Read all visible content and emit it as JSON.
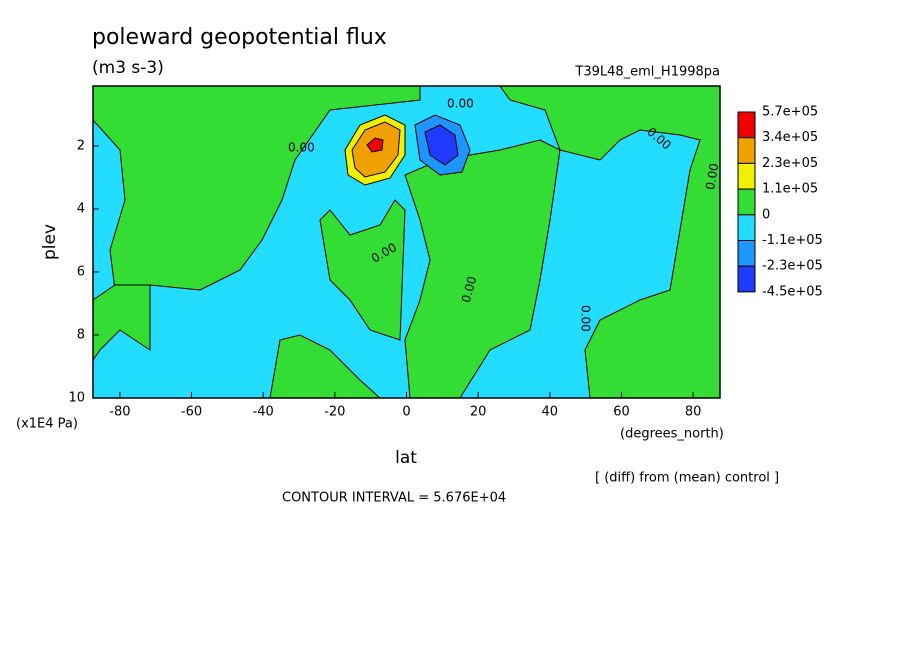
{
  "chart_data": {
    "type": "contour",
    "title": "poleward geopotential flux",
    "subtitle": "(m3 s-3)",
    "run_label": "T39L48_eml_H1998pa",
    "xlabel": "lat",
    "x_units": "(degrees_north)",
    "ylabel": "plev",
    "y_units": "(x1E4 Pa)",
    "note": "[ (diff) from (mean) control ]",
    "contour_interval": "CONTOUR INTERVAL = 5.676E+04",
    "contour_label": "0.00",
    "xlim": [
      -87.5,
      87.5
    ],
    "xticks": [
      -80,
      -60,
      -40,
      -20,
      0,
      20,
      40,
      60,
      80
    ],
    "ylim": [
      10,
      0.1
    ],
    "yticks": [
      2,
      4,
      6,
      8,
      10
    ],
    "levels": [
      {
        "value": 570000,
        "label": "5.7e+05"
      },
      {
        "value": 340000,
        "label": "3.4e+05"
      },
      {
        "value": 230000,
        "label": "2.3e+05"
      },
      {
        "value": 110000,
        "label": "1.1e+05"
      },
      0,
      {
        "value": -110000,
        "label": "-1.1e+05"
      },
      {
        "value": -230000,
        "label": "-2.3e+05"
      },
      {
        "value": -450000,
        "label": "-4.5e+05"
      }
    ],
    "colors": [
      "#f00000",
      "#f0a000",
      "#f0f000",
      "#33dd33",
      "#22ddff",
      "#1e96ff",
      "#1e3cff"
    ]
  }
}
